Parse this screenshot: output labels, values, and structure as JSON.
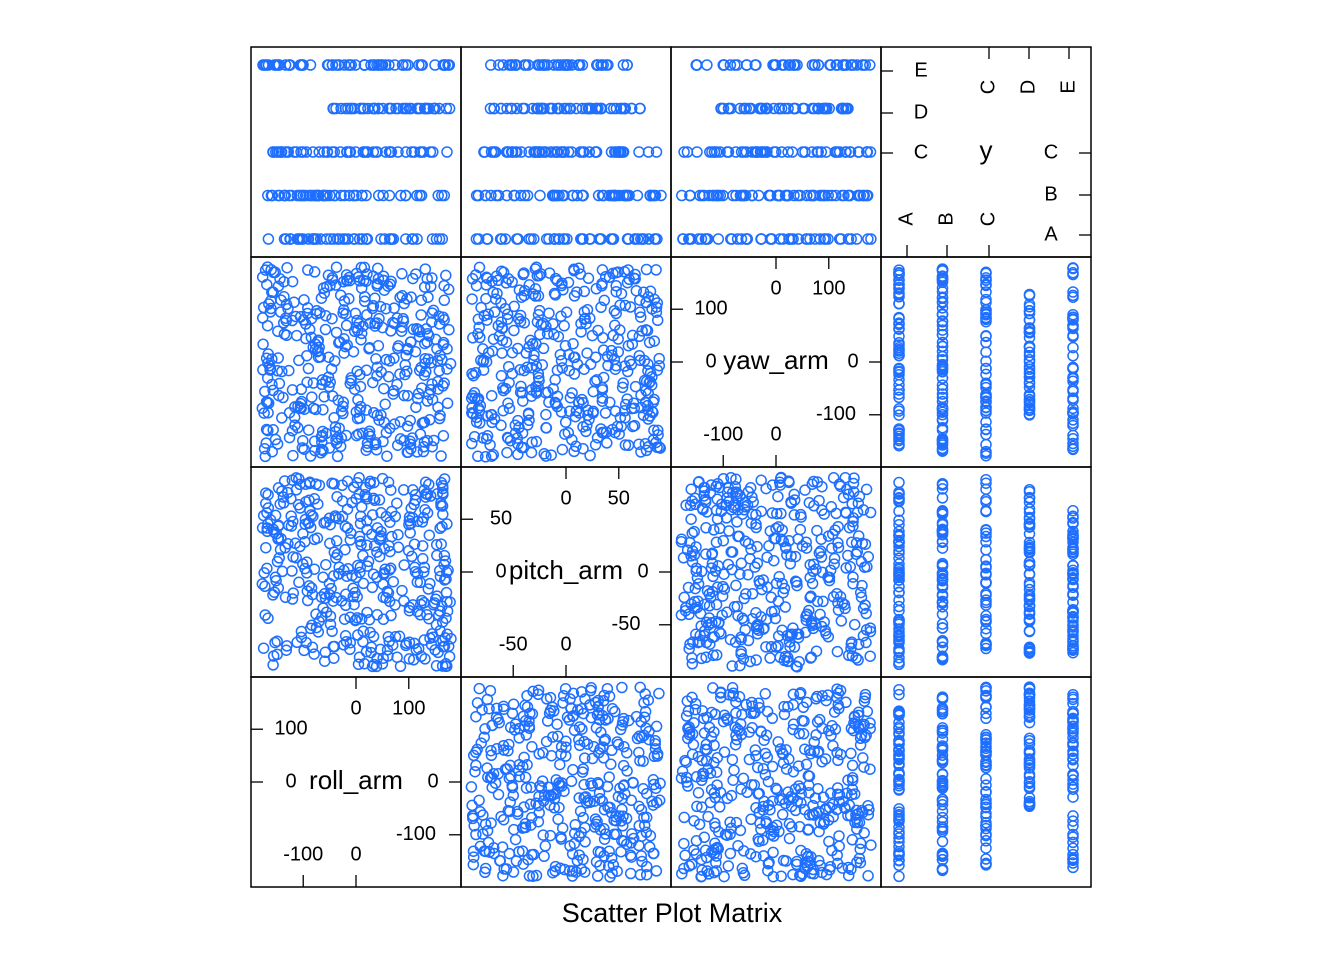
{
  "caption": "Scatter Plot Matrix",
  "colors": {
    "point": "#1f6fff",
    "frame": "#000000",
    "background": "#ffffff"
  },
  "chart_data": {
    "type": "scatter",
    "title": "",
    "variables": [
      {
        "name": "roll_arm",
        "range": [
          -180,
          180
        ],
        "ticks_low": [
          -100,
          0
        ],
        "ticks_high": [
          0,
          100
        ],
        "tick_labels_low": [
          "-100",
          "0"
        ],
        "tick_labels_high": [
          "0",
          "100"
        ],
        "kind": "numeric"
      },
      {
        "name": "pitch_arm",
        "range": [
          -90,
          90
        ],
        "ticks_low": [
          -50,
          0
        ],
        "ticks_high": [
          0,
          50
        ],
        "tick_labels_low": [
          "-50",
          "0"
        ],
        "tick_labels_high": [
          "0",
          "50"
        ],
        "kind": "numeric"
      },
      {
        "name": "yaw_arm",
        "range": [
          -180,
          180
        ],
        "ticks_low": [
          -100,
          0
        ],
        "ticks_high": [
          0,
          100
        ],
        "tick_labels_low": [
          "-100",
          "0"
        ],
        "tick_labels_high": [
          "0",
          "100"
        ],
        "kind": "numeric"
      },
      {
        "name": "y",
        "kind": "factor",
        "levels": [
          "A",
          "B",
          "C",
          "D",
          "E"
        ],
        "ticks_low": [
          "A",
          "B",
          "C"
        ],
        "ticks_high": [
          "C",
          "D",
          "E"
        ]
      }
    ],
    "class_ranges": {
      "roll_arm": {
        "A": [
          -180,
          180
        ],
        "B": [
          -180,
          180
        ],
        "C": [
          -160,
          180
        ],
        "D": [
          -50,
          180
        ],
        "E": [
          -180,
          180
        ]
      },
      "pitch_arm": {
        "A": [
          -88,
          90
        ],
        "B": [
          -88,
          90
        ],
        "C": [
          -80,
          88
        ],
        "D": [
          -78,
          78
        ],
        "E": [
          -80,
          60
        ]
      },
      "yaw_arm": {
        "A": [
          -180,
          180
        ],
        "B": [
          -180,
          180
        ],
        "C": [
          -180,
          180
        ],
        "D": [
          -105,
          140
        ],
        "E": [
          -170,
          180
        ]
      }
    },
    "legend": "none",
    "grid": false,
    "marker": "open-circle"
  }
}
